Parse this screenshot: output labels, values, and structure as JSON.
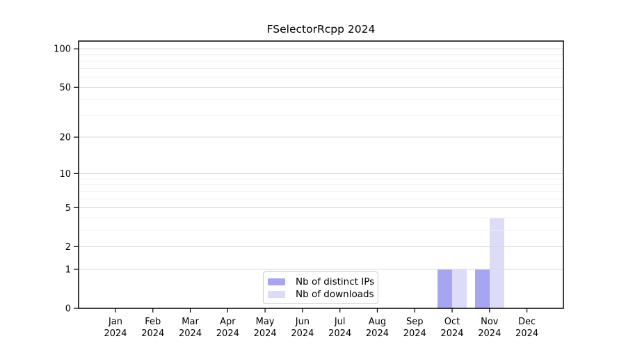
{
  "chart_data": {
    "type": "bar",
    "title": "FSelectorRcpp 2024",
    "categories": [
      "Jan 2024",
      "Feb 2024",
      "Mar 2024",
      "Apr 2024",
      "May 2024",
      "Jun 2024",
      "Jul 2024",
      "Aug 2024",
      "Sep 2024",
      "Oct 2024",
      "Nov 2024",
      "Dec 2024"
    ],
    "series": [
      {
        "name": "Nb of distinct IPs",
        "color": "#a5a5f1",
        "values": [
          0,
          0,
          0,
          0,
          0,
          0,
          0,
          0,
          0,
          1,
          1,
          0
        ]
      },
      {
        "name": "Nb of downloads",
        "color": "#dcdcf9",
        "values": [
          0,
          0,
          0,
          0,
          0,
          0,
          0,
          0,
          0,
          1,
          4,
          0
        ]
      }
    ],
    "xlabel": "",
    "ylabel": "",
    "y_scale": "log1p",
    "y_ticks": [
      0,
      1,
      2,
      5,
      10,
      20,
      50,
      100
    ],
    "y_minor_ticks": [
      3,
      4,
      6,
      7,
      8,
      9,
      30,
      40,
      60,
      70,
      80,
      90
    ],
    "ylim": [
      0,
      115
    ],
    "grid": true,
    "legend_position": "bottom-center"
  },
  "colors": {
    "background": "#ffffff",
    "axis": "#000000",
    "text": "#000000",
    "grid_major": "#d8d8d8",
    "grid_minor": "#f0f0f0"
  }
}
